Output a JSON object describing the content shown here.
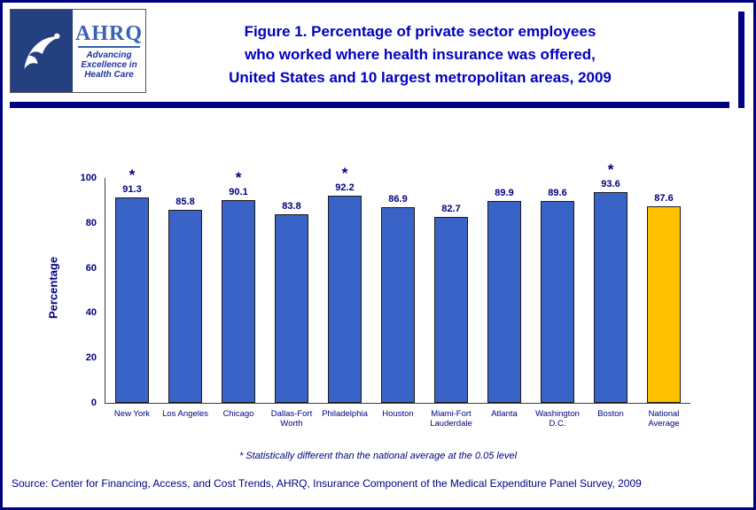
{
  "header": {
    "title_lines": [
      "Figure 1. Percentage of private sector employees",
      "who worked where health insurance was offered,",
      "United States and 10 largest metropolitan areas, 2009"
    ],
    "logo": {
      "hhs_icon": "hhs-eagle-logo",
      "ahrq_name": "AHRQ",
      "tagline_lines": [
        "Advancing",
        "Excellence in",
        "Health Care"
      ]
    }
  },
  "chart_data": {
    "type": "bar",
    "title": "Figure 1. Percentage of private sector employees who worked where health insurance was offered, United States and 10 largest metropolitan areas, 2009",
    "xlabel": "",
    "ylabel": "Percentage",
    "ylim": [
      0,
      100
    ],
    "yticks": [
      0,
      20,
      40,
      60,
      80,
      100
    ],
    "grid": "off",
    "legend": "none",
    "categories": [
      "New York",
      "Los Angeles",
      "Chicago",
      "Dallas-Fort Worth",
      "Philadelphia",
      "Houston",
      "Miami-Fort Lauderdale",
      "Atlanta",
      "Washington D.C.",
      "Boston",
      "National Average"
    ],
    "values": [
      91.3,
      85.8,
      90.1,
      83.8,
      92.2,
      86.9,
      82.7,
      89.9,
      89.6,
      93.6,
      87.6
    ],
    "starred": [
      true,
      false,
      true,
      false,
      true,
      false,
      false,
      false,
      false,
      true,
      false
    ],
    "bar_colors": [
      "blue",
      "blue",
      "blue",
      "blue",
      "blue",
      "blue",
      "blue",
      "blue",
      "blue",
      "blue",
      "gold"
    ]
  },
  "colors": {
    "bar_blue": "#3a63c8",
    "bar_gold": "#ffc000",
    "navy": "#000080",
    "title_blue": "#0000c0"
  },
  "footnote": "* Statistically different than the national average at the 0.05 level",
  "source": "Source: Center for Financing, Access, and Cost Trends, AHRQ, Insurance Component of the Medical Expenditure Panel Survey, 2009"
}
